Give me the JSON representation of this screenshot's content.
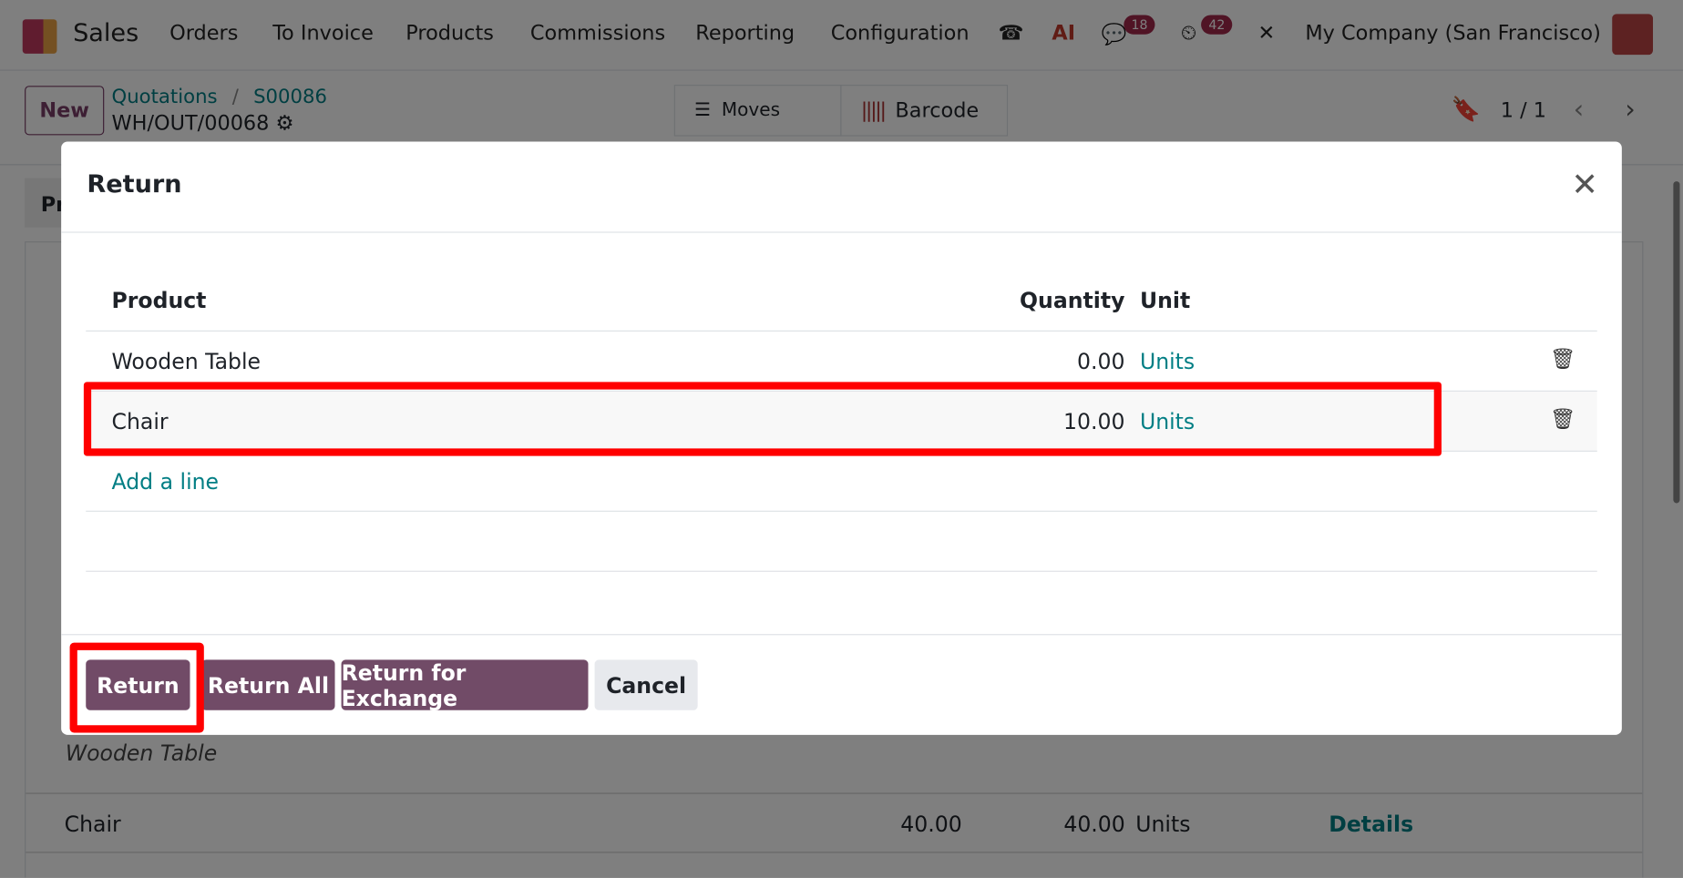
{
  "navbar": {
    "app_name": "Sales",
    "menu": [
      "Orders",
      "To Invoice",
      "Products",
      "Commissions",
      "Reporting",
      "Configuration"
    ],
    "messages_badge": "18",
    "activities_badge": "42",
    "company": "My Company (San Francisco)"
  },
  "control": {
    "new_label": "New",
    "breadcrumb": [
      "Quotations",
      "S00086"
    ],
    "breadcrumb_sep": "/",
    "record": "WH/OUT/00068",
    "moves_label": "Moves",
    "barcode_label": "Barcode",
    "pager": "1 / 1"
  },
  "background": {
    "note": "Wooden Table",
    "row": {
      "product": "Chair",
      "demand": "40.00",
      "quantity": "40.00",
      "unit": "Units",
      "details": "Details"
    },
    "tab_partial": "Pr"
  },
  "dialog": {
    "title": "Return",
    "columns": {
      "product": "Product",
      "quantity": "Quantity",
      "unit": "Unit"
    },
    "rows": [
      {
        "product": "Wooden Table",
        "quantity": "0.00",
        "unit": "Units"
      },
      {
        "product": "Chair",
        "quantity": "10.00",
        "unit": "Units"
      }
    ],
    "add_line": "Add a line",
    "buttons": {
      "return": "Return",
      "return_all": "Return All",
      "return_exchange": "Return for Exchange",
      "cancel": "Cancel"
    }
  },
  "colors": {
    "primary": "#714b67",
    "link": "#017e84",
    "highlight": "#ff0000"
  }
}
